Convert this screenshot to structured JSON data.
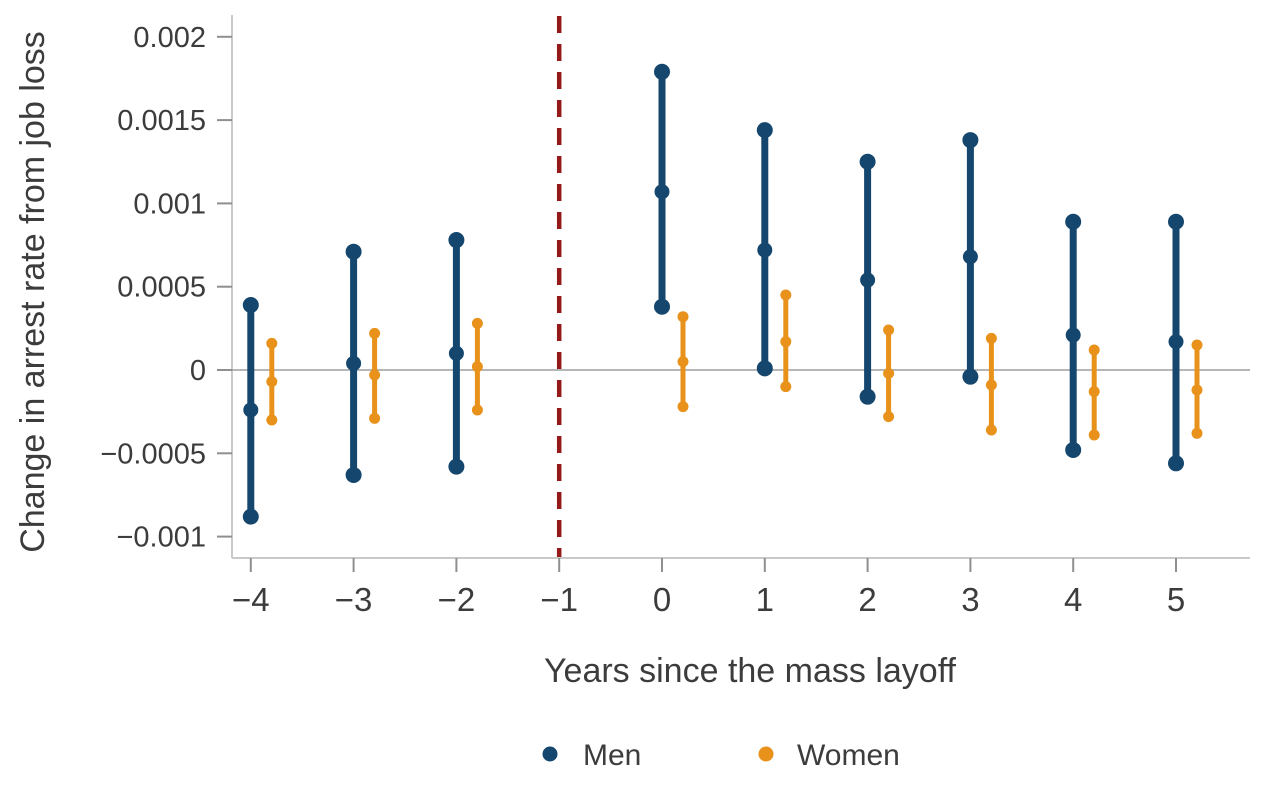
{
  "figure": {
    "background": "#ffffff"
  },
  "colors": {
    "men": "#14466E",
    "women": "#E8921B",
    "reference_line": "#941A1A",
    "zero_line": "#9E9E9E",
    "axis_line": "#C9C9C9",
    "tick_mark": "#8F8F8F",
    "text": "#3C3C3C"
  },
  "legend": {
    "men_label": "Men",
    "women_label": "Women"
  },
  "chart_data": {
    "type": "scatter",
    "subtype": "point-estimate-with-confidence-interval",
    "title": "",
    "xlabel": "Years since the mass layoff",
    "ylabel": "Change in arrest rate from job loss",
    "x_ticks": [
      -4,
      -3,
      -2,
      -1,
      0,
      1,
      2,
      3,
      4,
      5
    ],
    "x_tick_labels": [
      "−4",
      "−3",
      "−2",
      "−1",
      "0",
      "1",
      "2",
      "3",
      "4",
      "5"
    ],
    "y_ticks": [
      0.002,
      0.0015,
      0.001,
      0.0005,
      0,
      -0.0005,
      -0.001
    ],
    "y_tick_labels": [
      "0.002",
      "0.0015",
      "0.001",
      "0.0005",
      "0",
      "−0.0005",
      "−0.001"
    ],
    "xlim": [
      -4.2,
      5.7
    ],
    "ylim": [
      -0.00113,
      0.00213
    ],
    "grid": "off",
    "zero_line_y": 0,
    "reference_line_x": -1,
    "reference_line_style": "dashed",
    "legend_position": "bottom",
    "series": [
      {
        "name": "Men",
        "color": "#14466E",
        "points": [
          {
            "x": -4,
            "value": -0.00024,
            "ci_low": -0.00088,
            "ci_high": 0.00039
          },
          {
            "x": -3,
            "value": 4e-05,
            "ci_low": -0.00063,
            "ci_high": 0.00071
          },
          {
            "x": -2,
            "value": 0.0001,
            "ci_low": -0.00058,
            "ci_high": 0.00078
          },
          {
            "x": 0,
            "value": 0.00107,
            "ci_low": 0.00038,
            "ci_high": 0.00179
          },
          {
            "x": 1,
            "value": 0.00072,
            "ci_low": 1e-05,
            "ci_high": 0.00144
          },
          {
            "x": 2,
            "value": 0.00054,
            "ci_low": -0.00016,
            "ci_high": 0.00125
          },
          {
            "x": 3,
            "value": 0.00068,
            "ci_low": -4e-05,
            "ci_high": 0.00138
          },
          {
            "x": 4,
            "value": 0.00021,
            "ci_low": -0.00048,
            "ci_high": 0.00089
          },
          {
            "x": 5,
            "value": 0.00017,
            "ci_low": -0.00056,
            "ci_high": 0.00089
          }
        ]
      },
      {
        "name": "Women",
        "color": "#E8921B",
        "points": [
          {
            "x": -4,
            "value": -7e-05,
            "ci_low": -0.0003,
            "ci_high": 0.00016
          },
          {
            "x": -3,
            "value": -3e-05,
            "ci_low": -0.00029,
            "ci_high": 0.00022
          },
          {
            "x": -2,
            "value": 2e-05,
            "ci_low": -0.00024,
            "ci_high": 0.00028
          },
          {
            "x": 0,
            "value": 5e-05,
            "ci_low": -0.00022,
            "ci_high": 0.00032
          },
          {
            "x": 1,
            "value": 0.00017,
            "ci_low": -0.0001,
            "ci_high": 0.00045
          },
          {
            "x": 2,
            "value": -2e-05,
            "ci_low": -0.00028,
            "ci_high": 0.00024
          },
          {
            "x": 3,
            "value": -9e-05,
            "ci_low": -0.00036,
            "ci_high": 0.00019
          },
          {
            "x": 4,
            "value": -0.00013,
            "ci_low": -0.00039,
            "ci_high": 0.00012
          },
          {
            "x": 5,
            "value": -0.00012,
            "ci_low": -0.00038,
            "ci_high": 0.00015
          }
        ]
      }
    ]
  }
}
